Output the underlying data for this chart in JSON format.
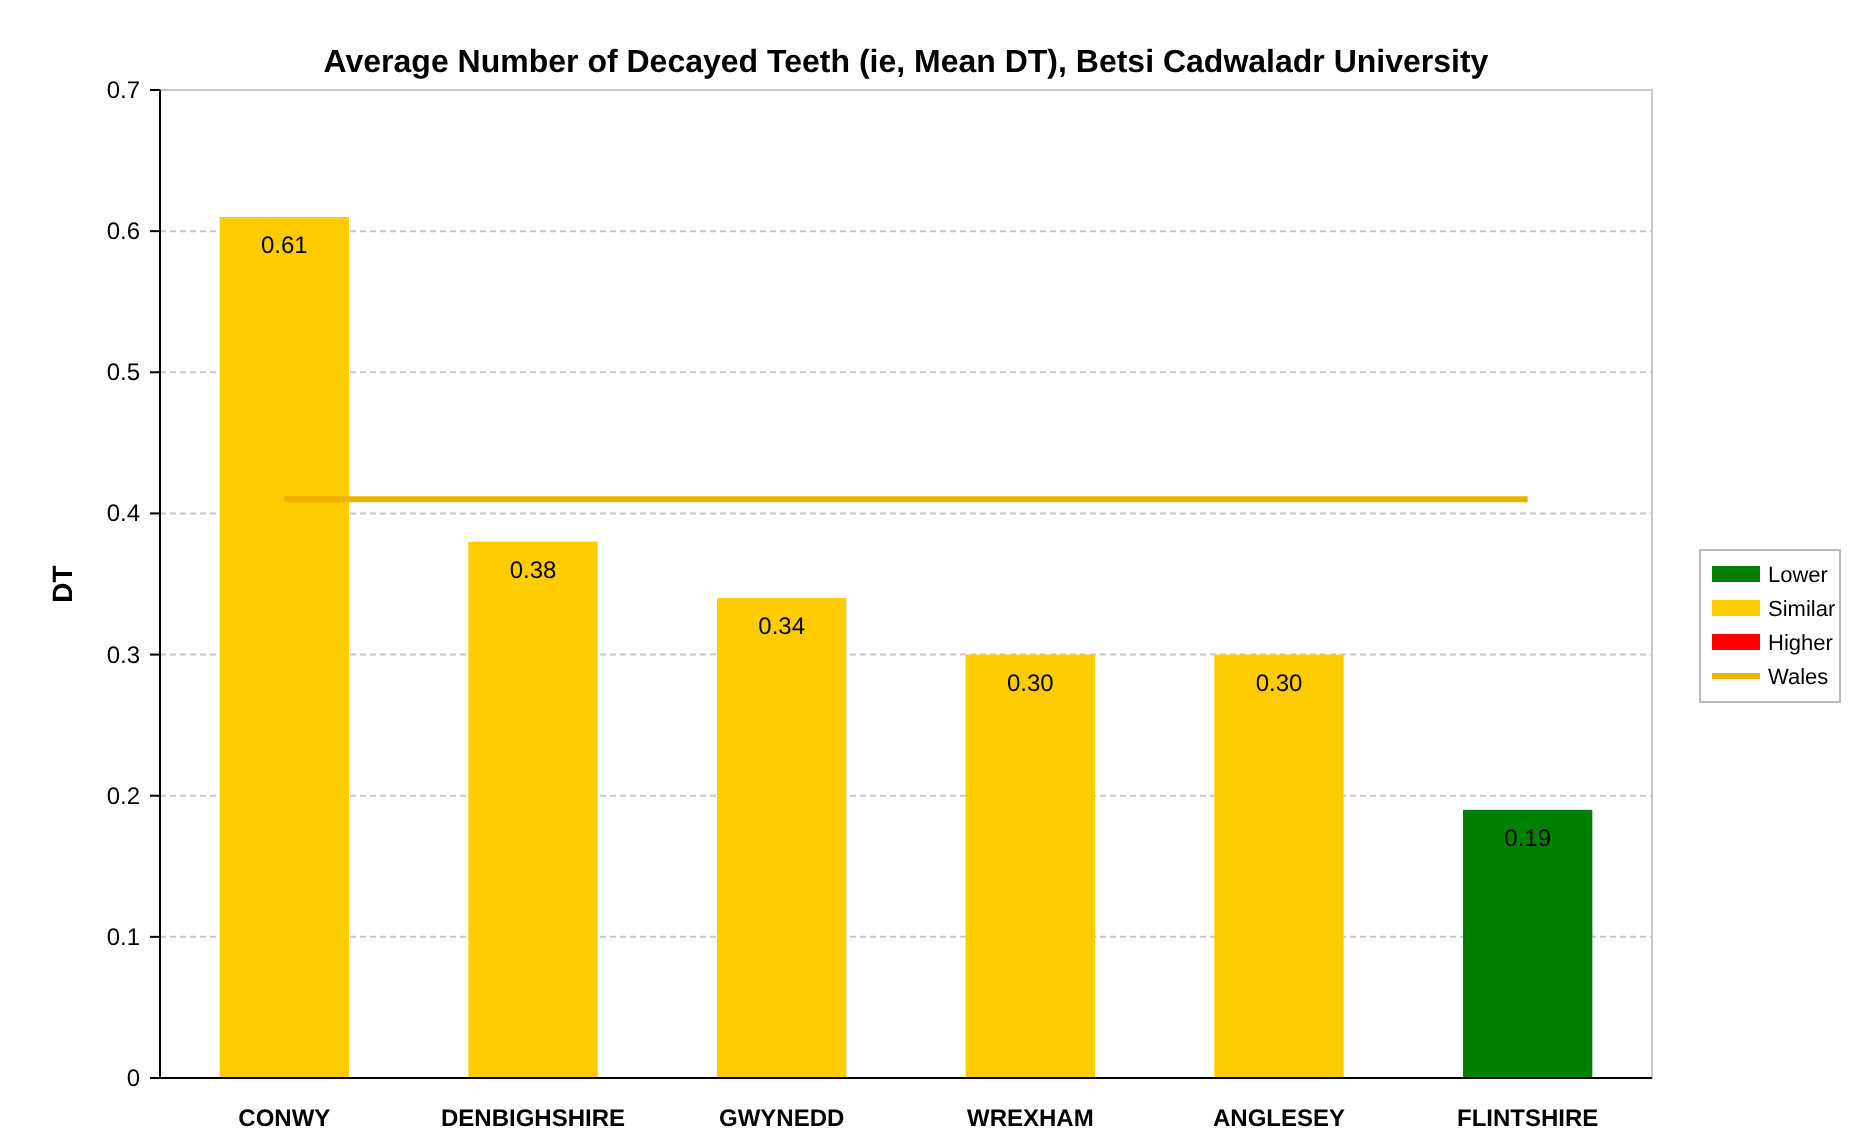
{
  "chart_data": {
    "type": "bar",
    "title": "Average Number of Decayed Teeth (ie, Mean DT), Betsi Cadwaladr University",
    "ylabel": "DT",
    "categories": [
      "CONWY",
      "DENBIGHSHIRE",
      "GWYNEDD",
      "WREXHAM",
      "ANGLESEY",
      "FLINTSHIRE"
    ],
    "series": [
      {
        "name": "Lower",
        "color": "#008000",
        "values": [
          null,
          null,
          null,
          null,
          null,
          0.19
        ],
        "value_labels": [
          null,
          null,
          null,
          null,
          null,
          "0.19"
        ]
      },
      {
        "name": "Similar",
        "color": "#ffcc00",
        "values": [
          0.61,
          0.38,
          0.34,
          0.3,
          0.3,
          null
        ],
        "value_labels": [
          "0.61",
          "0.38",
          "0.34",
          "0.30",
          "0.30",
          null
        ]
      },
      {
        "name": "Higher",
        "color": "#ff0000",
        "values": [
          null,
          null,
          null,
          null,
          null,
          null
        ]
      },
      {
        "name": "Wales",
        "type": "line",
        "color": "#f0b000",
        "values": [
          0.41,
          0.41,
          0.41,
          0.41,
          0.41,
          0.41
        ]
      }
    ],
    "ylim": [
      0,
      0.7
    ],
    "yticks": [
      0,
      0.1,
      0.2,
      0.3,
      0.4,
      0.5,
      0.6,
      0.7
    ],
    "grid": "y",
    "legend": "right",
    "marker": "none",
    "line_style": "solid"
  }
}
